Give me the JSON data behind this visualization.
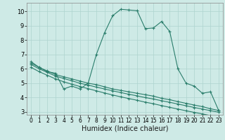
{
  "xlabel": "Humidex (Indice chaleur)",
  "line_color": "#2a7d6b",
  "bg_color": "#ceeae6",
  "grid_color": "#aed4cf",
  "xlim": [
    -0.5,
    23.5
  ],
  "ylim": [
    2.8,
    10.6
  ],
  "yticks": [
    3,
    4,
    5,
    6,
    7,
    8,
    9,
    10
  ],
  "xticks": [
    0,
    1,
    2,
    3,
    4,
    5,
    6,
    7,
    8,
    9,
    10,
    11,
    12,
    13,
    14,
    15,
    16,
    17,
    18,
    19,
    20,
    21,
    22,
    23
  ],
  "series": [
    {
      "x": [
        0,
        1,
        2,
        3,
        4,
        5,
        6,
        7,
        8,
        9,
        10,
        11,
        12,
        13,
        14,
        15,
        16,
        17,
        18,
        19,
        20,
        21,
        22,
        23
      ],
      "y": [
        6.5,
        6.1,
        5.8,
        5.7,
        4.6,
        4.8,
        4.6,
        5.0,
        7.0,
        8.5,
        9.7,
        10.15,
        10.1,
        10.05,
        8.8,
        8.85,
        9.3,
        8.6,
        6.0,
        5.0,
        4.8,
        4.3,
        4.4,
        3.1
      ]
    },
    {
      "x": [
        0,
        1,
        2,
        3,
        4,
        5,
        6,
        7,
        8,
        9,
        10,
        11,
        12,
        13,
        14,
        15,
        16,
        17,
        18,
        19,
        20,
        21,
        22,
        23
      ],
      "y": [
        6.4,
        6.1,
        5.85,
        5.6,
        5.45,
        5.3,
        5.15,
        5.0,
        4.9,
        4.75,
        4.6,
        4.5,
        4.4,
        4.3,
        4.2,
        4.1,
        3.95,
        3.85,
        3.72,
        3.6,
        3.48,
        3.37,
        3.22,
        3.1
      ]
    },
    {
      "x": [
        0,
        1,
        2,
        3,
        4,
        5,
        6,
        7,
        8,
        9,
        10,
        11,
        12,
        13,
        14,
        15,
        16,
        17,
        18,
        19,
        20,
        21,
        22,
        23
      ],
      "y": [
        6.3,
        6.0,
        5.75,
        5.5,
        5.33,
        5.17,
        5.0,
        4.87,
        4.73,
        4.6,
        4.47,
        4.35,
        4.23,
        4.12,
        4.0,
        3.9,
        3.78,
        3.67,
        3.55,
        3.43,
        3.31,
        3.2,
        3.09,
        2.98
      ]
    },
    {
      "x": [
        0,
        1,
        2,
        3,
        4,
        5,
        6,
        7,
        8,
        9,
        10,
        11,
        12,
        13,
        14,
        15,
        16,
        17,
        18,
        19,
        20,
        21,
        22,
        23
      ],
      "y": [
        6.1,
        5.8,
        5.55,
        5.3,
        5.1,
        4.93,
        4.77,
        4.62,
        4.47,
        4.32,
        4.18,
        4.05,
        3.93,
        3.81,
        3.68,
        3.57,
        3.44,
        3.32,
        3.2,
        3.08,
        2.97,
        2.86,
        2.75,
        2.65
      ]
    }
  ]
}
